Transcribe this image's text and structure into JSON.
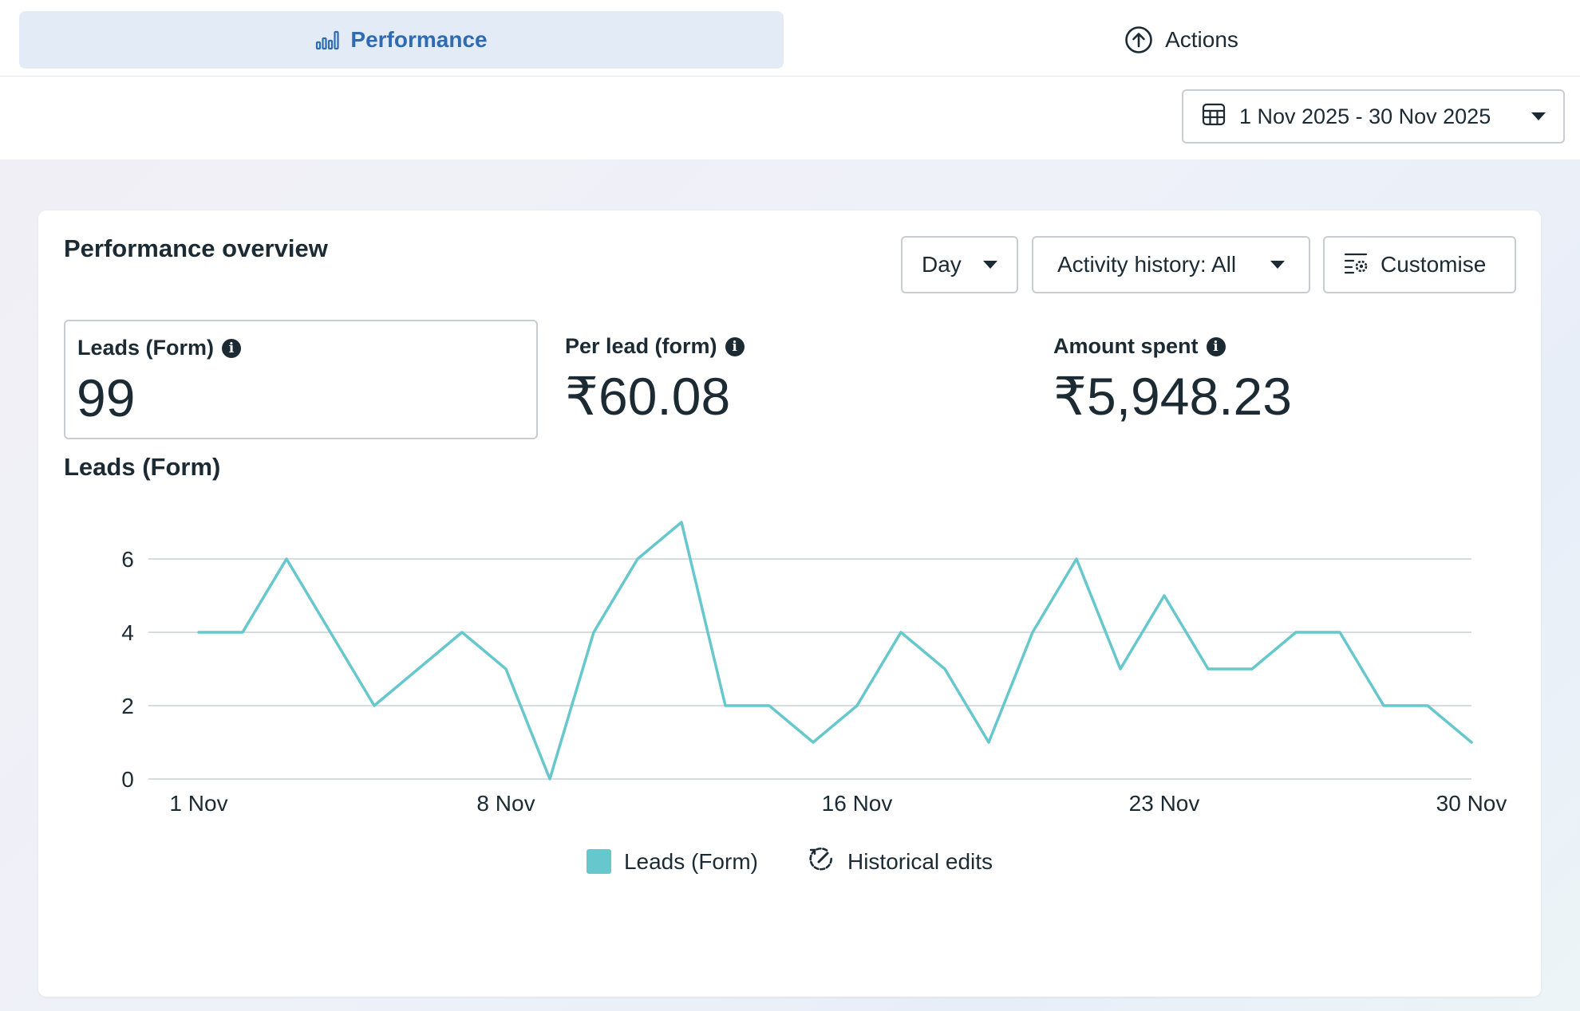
{
  "tabs": [
    {
      "label": "Performance",
      "icon": "bar-chart-icon",
      "active": true
    },
    {
      "label": "Actions",
      "icon": "arrow-up-circle-icon",
      "active": false
    }
  ],
  "date_range": {
    "label": "1 Nov 2025 - 30 Nov 2025",
    "icon": "calendar-icon"
  },
  "card": {
    "title": "Performance overview",
    "controls": {
      "day": "Day",
      "activity": "Activity history: All",
      "customise": "Customise"
    },
    "metrics": [
      {
        "label": "Leads (Form)",
        "value": "99"
      },
      {
        "label": "Per lead (form)",
        "value": "₹60.08"
      },
      {
        "label": "Amount spent",
        "value": "₹5,948.23"
      }
    ],
    "chart_title": "Leads (Form)",
    "legend": {
      "series": "Leads (Form)",
      "edits": "Historical edits"
    }
  },
  "colors": {
    "line": "#66c8cc",
    "accent": "#2e6bb3",
    "grid": "#d9dcdf"
  },
  "chart_data": {
    "type": "line",
    "x": [
      "1 Nov",
      "2 Nov",
      "3 Nov",
      "4 Nov",
      "5 Nov",
      "6 Nov",
      "7 Nov",
      "8 Nov",
      "9 Nov",
      "10 Nov",
      "11 Nov",
      "12 Nov",
      "13 Nov",
      "14 Nov",
      "15 Nov",
      "16 Nov",
      "17 Nov",
      "18 Nov",
      "19 Nov",
      "20 Nov",
      "21 Nov",
      "22 Nov",
      "23 Nov",
      "24 Nov",
      "25 Nov",
      "26 Nov",
      "27 Nov",
      "28 Nov",
      "29 Nov",
      "30 Nov"
    ],
    "xticks": [
      "1 Nov",
      "8 Nov",
      "16 Nov",
      "23 Nov",
      "30 Nov"
    ],
    "yticks": [
      0,
      2,
      4,
      6
    ],
    "ylim": [
      0,
      7
    ],
    "grid": true,
    "legend_position": "bottom-center",
    "series": [
      {
        "name": "Leads (Form)",
        "values": [
          4,
          4,
          6,
          4,
          2,
          3,
          4,
          3,
          0,
          4,
          6,
          7,
          2,
          2,
          1,
          2,
          4,
          3,
          1,
          4,
          6,
          3,
          5,
          3,
          3,
          4,
          4,
          2,
          2,
          1
        ]
      }
    ]
  }
}
